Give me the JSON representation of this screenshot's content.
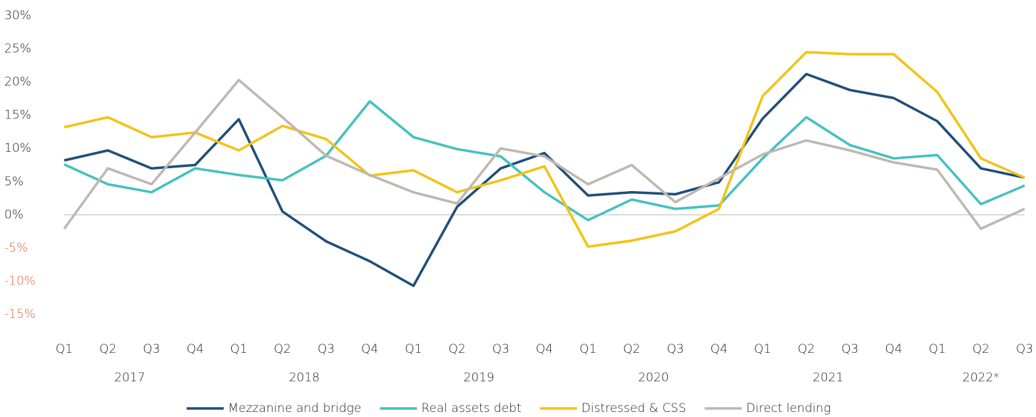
{
  "chart_data": {
    "type": "line",
    "categories": [
      "Q1",
      "Q2",
      "Q3",
      "Q4",
      "Q1",
      "Q2",
      "Q3",
      "Q4",
      "Q1",
      "Q2",
      "Q3",
      "Q4",
      "Q1",
      "Q2",
      "Q3",
      "Q4",
      "Q1",
      "Q2",
      "Q3",
      "Q4",
      "Q1",
      "Q2",
      "Q3"
    ],
    "years": [
      "2017",
      "2018",
      "2019",
      "2020",
      "2021",
      "2022*"
    ],
    "series": [
      {
        "name": "Mezzanine and bridge",
        "color": "#1f4e79",
        "values": [
          8.2,
          9.7,
          7.0,
          7.5,
          14.4,
          0.5,
          -4.0,
          -7.0,
          -10.7,
          1.2,
          7.0,
          9.3,
          2.9,
          3.4,
          3.1,
          4.9,
          14.5,
          21.2,
          18.8,
          17.6,
          14.1,
          7.0,
          5.6
        ]
      },
      {
        "name": "Real assets debt",
        "color": "#45c1c0",
        "values": [
          7.6,
          4.6,
          3.4,
          7.0,
          6.0,
          5.2,
          8.9,
          17.1,
          11.7,
          9.9,
          8.8,
          3.4,
          -0.8,
          2.3,
          0.9,
          1.4,
          8.5,
          14.7,
          10.5,
          8.5,
          9.0,
          1.6,
          4.4
        ]
      },
      {
        "name": "Distressed & CSS",
        "color": "#f2c314",
        "values": [
          13.2,
          14.7,
          11.7,
          12.4,
          9.7,
          13.4,
          11.4,
          5.9,
          6.7,
          3.4,
          5.2,
          7.3,
          -4.8,
          -3.9,
          -2.5,
          0.9,
          17.9,
          24.5,
          24.2,
          24.2,
          18.5,
          8.5,
          5.6
        ]
      },
      {
        "name": "Direct lending",
        "color": "#bdb8b0",
        "values": [
          -2.1,
          7.0,
          4.6,
          12.4,
          20.3,
          14.7,
          8.9,
          6.0,
          3.4,
          1.7,
          10.0,
          8.8,
          4.6,
          7.5,
          1.9,
          5.5,
          9.1,
          11.2,
          9.7,
          7.9,
          6.8,
          -2.1,
          0.9
        ]
      }
    ],
    "ylim": [
      -15,
      30
    ],
    "yticks": [
      {
        "value": 30,
        "label": "30%"
      },
      {
        "value": 25,
        "label": "25%"
      },
      {
        "value": 20,
        "label": "20%"
      },
      {
        "value": 15,
        "label": "15%"
      },
      {
        "value": 10,
        "label": "10%"
      },
      {
        "value": 5,
        "label": "5%"
      },
      {
        "value": 0,
        "label": "0%"
      },
      {
        "value": -5,
        "label": "-5%"
      },
      {
        "value": -10,
        "label": "-10%"
      },
      {
        "value": -15,
        "label": "-15%"
      }
    ],
    "legend": "bottom"
  }
}
